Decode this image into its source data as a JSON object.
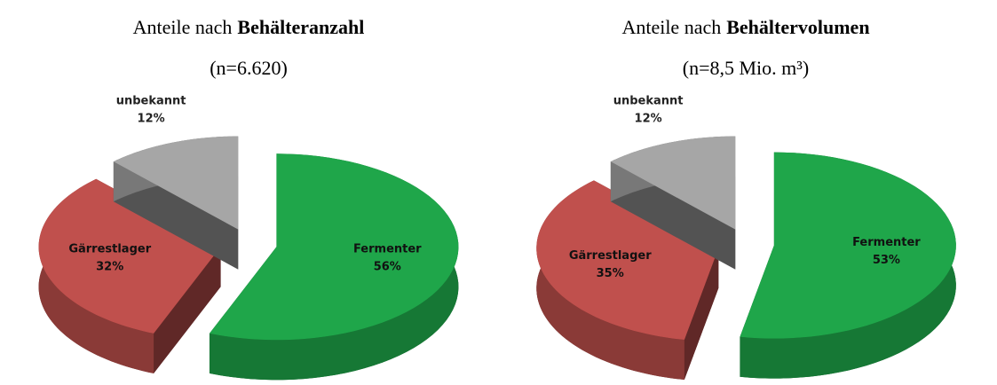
{
  "chart_data": [
    {
      "type": "pie",
      "title": "Anteile nach",
      "title_emphasis": "Behälteranzahl",
      "subtitle": "(n=6.620)",
      "categories": [
        "Fermenter",
        "Gärrestlager",
        "unbekannt"
      ],
      "values": [
        56,
        32,
        12
      ],
      "value_labels": [
        "56%",
        "32%",
        "12%"
      ],
      "colors": [
        "#1fa64a",
        "#c0504d",
        "#a6a6a6"
      ]
    },
    {
      "type": "pie",
      "title": "Anteile nach",
      "title_emphasis": "Behältervolumen",
      "subtitle": "(n=8,5 Mio. m³)",
      "categories": [
        "Fermenter",
        "Gärrestlager",
        "unbekannt"
      ],
      "values": [
        53,
        35,
        12
      ],
      "value_labels": [
        "53%",
        "35%",
        "12%"
      ],
      "colors": [
        "#1fa64a",
        "#c0504d",
        "#a6a6a6"
      ]
    }
  ]
}
